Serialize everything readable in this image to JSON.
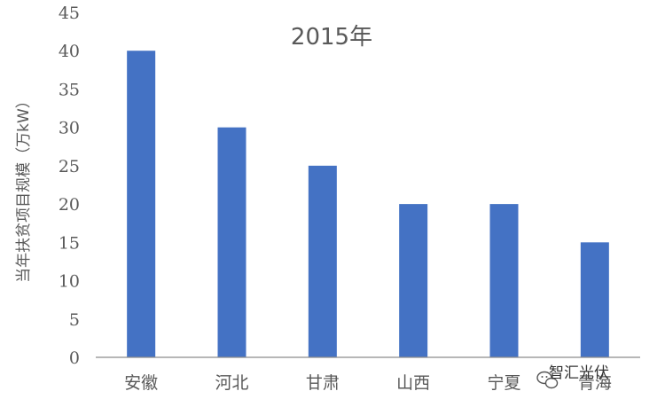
{
  "chart_data": {
    "type": "bar",
    "title": "2015年",
    "xlabel": "",
    "ylabel": "当年扶贫项目规模（万kW）",
    "categories": [
      "安徽",
      "河北",
      "甘肃",
      "山西",
      "宁夏",
      "青海"
    ],
    "values": [
      40,
      30,
      25,
      20,
      20,
      15
    ],
    "ylim": [
      0,
      45
    ],
    "yticks": [
      0,
      5,
      10,
      15,
      20,
      25,
      30,
      35,
      40,
      45
    ],
    "grid": false,
    "legend": "none",
    "bar_color": "#4472C4"
  },
  "watermark": {
    "text": "智汇光伏",
    "icon": "wechat-icon"
  },
  "colors": {
    "axis": "#8C8C8C",
    "text": "#595959"
  }
}
